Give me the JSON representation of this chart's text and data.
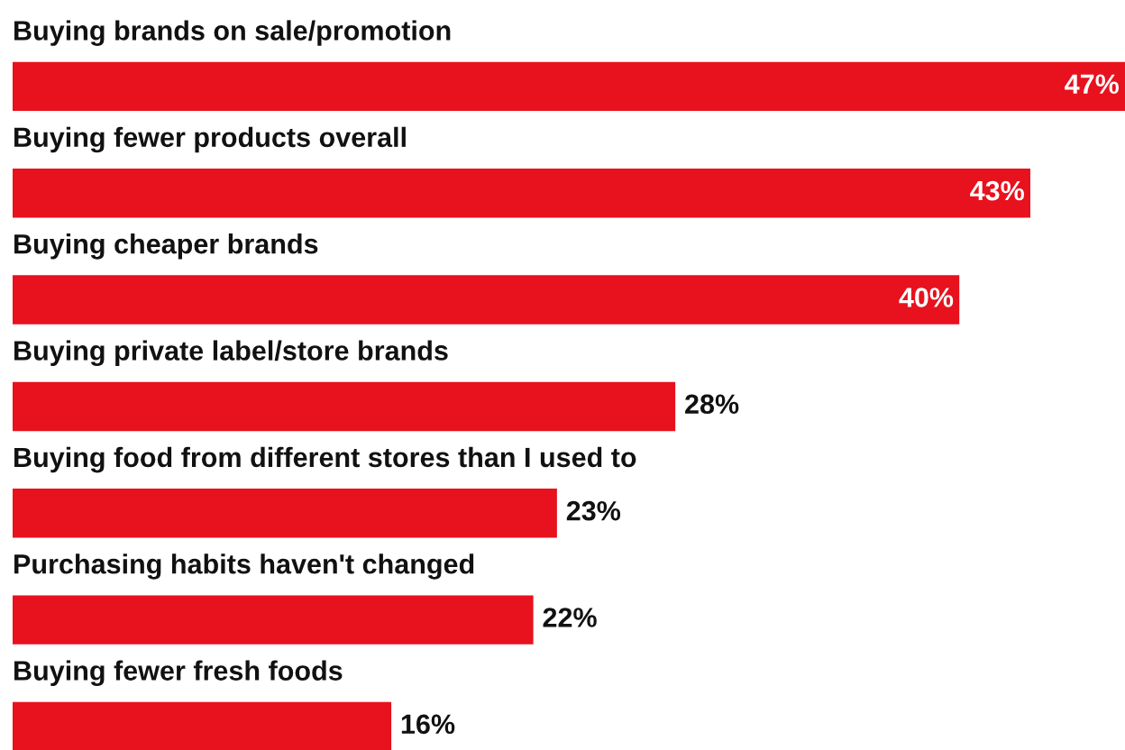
{
  "chart_data": {
    "type": "bar",
    "orientation": "horizontal",
    "categories": [
      "Buying brands on sale/promotion",
      "Buying fewer products overall",
      "Buying cheaper brands",
      "Buying private label/store brands",
      "Buying food from different stores than I used to",
      "Purchasing habits haven't changed",
      "Buying fewer fresh foods"
    ],
    "values": [
      47,
      43,
      40,
      28,
      23,
      22,
      16
    ],
    "value_labels": [
      "47%",
      "43%",
      "40%",
      "28%",
      "23%",
      "22%",
      "16%"
    ],
    "color": "#e8111e"
  }
}
